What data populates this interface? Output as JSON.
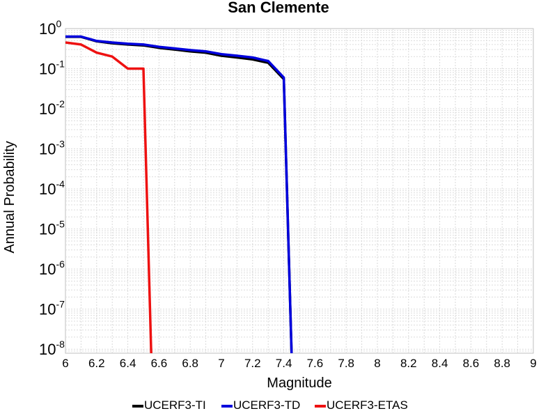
{
  "chart_data": {
    "type": "line",
    "title": "San Clemente",
    "xlabel": "Magnitude",
    "ylabel": "Annual Probability",
    "xlim": [
      6,
      9
    ],
    "ylim_log10": [
      -8.1,
      0
    ],
    "y_scale": "log",
    "grid": true,
    "legend_position": "bottom",
    "x_tick_labels": [
      "6",
      "6.2",
      "6.4",
      "6.6",
      "6.8",
      "7",
      "7.2",
      "7.4",
      "7.6",
      "7.8",
      "8",
      "8.2",
      "8.4",
      "8.6",
      "8.8",
      "9"
    ],
    "y_tick_base": "10",
    "y_tick_exponents": [
      "0",
      "-1",
      "-2",
      "-3",
      "-4",
      "-5",
      "-6",
      "-7",
      "-8"
    ],
    "series": [
      {
        "name": "UCERF3-TI",
        "color": "#000000",
        "x": [
          6.0,
          6.1,
          6.2,
          6.3,
          6.4,
          6.5,
          6.6,
          6.7,
          6.8,
          6.9,
          7.0,
          7.1,
          7.2,
          7.3,
          7.4,
          7.45
        ],
        "y": [
          0.62,
          0.62,
          0.48,
          0.43,
          0.4,
          0.38,
          0.33,
          0.3,
          0.27,
          0.25,
          0.21,
          0.19,
          0.17,
          0.14,
          0.055,
          7.5e-09
        ]
      },
      {
        "name": "UCERF3-TD",
        "color": "#0000dd",
        "x": [
          6.0,
          6.1,
          6.2,
          6.3,
          6.4,
          6.5,
          6.6,
          6.7,
          6.8,
          6.9,
          7.0,
          7.1,
          7.2,
          7.3,
          7.4,
          7.45
        ],
        "y": [
          0.63,
          0.63,
          0.49,
          0.45,
          0.42,
          0.4,
          0.35,
          0.32,
          0.29,
          0.27,
          0.23,
          0.21,
          0.19,
          0.155,
          0.06,
          7.5e-09
        ]
      },
      {
        "name": "UCERF3-ETAS",
        "color": "#ee1111",
        "x": [
          6.0,
          6.1,
          6.2,
          6.3,
          6.4,
          6.5,
          6.55
        ],
        "y": [
          0.45,
          0.4,
          0.25,
          0.2,
          0.1,
          0.1,
          7.5e-09
        ]
      }
    ]
  }
}
